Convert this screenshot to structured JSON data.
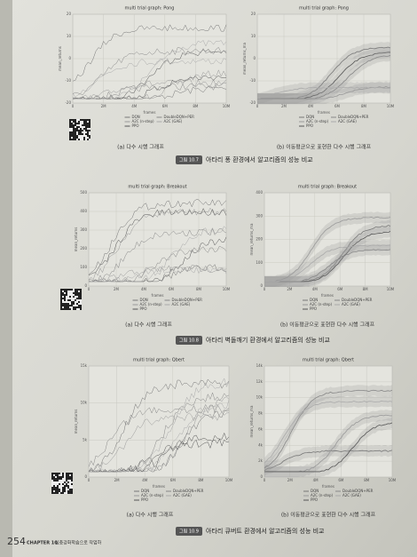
{
  "figures": [
    {
      "left": {
        "title": "multi trial graph: Pong",
        "ylabel": "mean_returns",
        "xlabel": "frames",
        "yticks": [
          "20",
          "10",
          "0",
          "-10",
          "-20"
        ],
        "xticks": [
          "0",
          "2M",
          "4M",
          "6M",
          "8M",
          "10M"
        ]
      },
      "right": {
        "title": "multi trial graph: Pong",
        "ylabel": "mean_returns_ma",
        "xlabel": "frames",
        "yticks": [
          "20",
          "10",
          "0",
          "-10",
          "-20"
        ],
        "xticks": [
          "0",
          "2M",
          "4M",
          "6M",
          "8M",
          "10M"
        ]
      },
      "legend": [
        "DQN",
        "A2C (n-step)",
        "PPO",
        "DoubleDQN+PER",
        "A2C (GAE)"
      ],
      "sub_a": "(a) 다수 시행 그래프",
      "sub_b": "(b) 이동평균으로 표현한 다수 시행 그래프",
      "caption_label": "그림 10.7",
      "caption": "아타리 퐁 환경에서 알고리즘의 성능 비교"
    },
    {
      "left": {
        "title": "multi trial graph: Breakout",
        "ylabel": "mean_returns",
        "xlabel": "frames",
        "yticks": [
          "500",
          "400",
          "300",
          "200",
          "100",
          "0"
        ],
        "xticks": [
          "0",
          "2M",
          "4M",
          "6M",
          "8M",
          "10M"
        ]
      },
      "right": {
        "title": "multi trial graph: Breakout",
        "ylabel": "mean_returns_ma",
        "xlabel": "frames",
        "yticks": [
          "400",
          "300",
          "200",
          "100",
          "0"
        ],
        "xticks": [
          "0",
          "2M",
          "4M",
          "6M",
          "8M",
          "10M"
        ]
      },
      "legend": [
        "DQN",
        "A2C (n-step)",
        "PPO",
        "DoubleDQN+PER",
        "A2C (GAE)"
      ],
      "sub_a": "(a) 다수 시행 그래프",
      "sub_b": "(b) 이동평균으로 표현한 다수 시행 그래프",
      "caption_label": "그림 10.8",
      "caption": "아타리 벽돌깨기 환경에서 알고리즘의 성능 비교"
    },
    {
      "left": {
        "title": "multi trial graph: Qbert",
        "ylabel": "mean_returns",
        "xlabel": "frames",
        "yticks": [
          "15k",
          "10k",
          "5k",
          "0"
        ],
        "xticks": [
          "0",
          "2M",
          "4M",
          "6M",
          "8M",
          "10M"
        ]
      },
      "right": {
        "title": "multi trial graph: Qbert",
        "ylabel": "mean_returns_ma",
        "xlabel": "frames",
        "yticks": [
          "14k",
          "12k",
          "10k",
          "8k",
          "6k",
          "4k",
          "2k",
          "0"
        ],
        "xticks": [
          "0",
          "2M",
          "4M",
          "6M",
          "8M",
          "10M"
        ]
      },
      "legend": [
        "DQN",
        "A2C (n-step)",
        "PPO",
        "DoubleDQN+PER",
        "A2C (GAE)"
      ],
      "sub_a": "(a) 다수 시행 그래프",
      "sub_b": "(b) 이동평균으로 표현한 다수 시행 그래프",
      "caption_label": "그림 10.9",
      "caption": "아타리 큐버트 환경에서 알고리즘의 성능 비교"
    }
  ],
  "footer": {
    "page": "254",
    "chapter": "CHAPTER 10",
    "chapter_title": "심층강화학습으로 작업하"
  }
}
